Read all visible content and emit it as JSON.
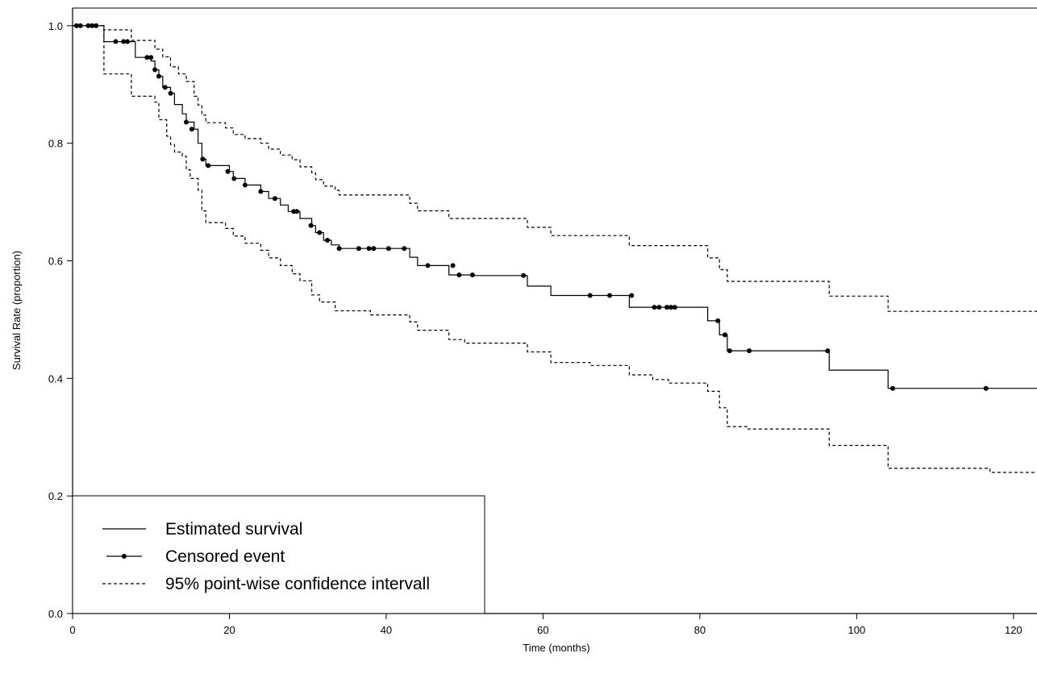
{
  "chart_data": {
    "type": "line",
    "xlabel": "Time (months)",
    "ylabel": "Survival Rate (proportion)",
    "xlim": [
      0,
      123
    ],
    "ylim": [
      0,
      1.03
    ],
    "x_ticks": [
      "0",
      "20",
      "40",
      "60",
      "80",
      "100",
      "120"
    ],
    "y_ticks": [
      "0.0",
      "0.2",
      "0.4",
      "0.6",
      "0.8",
      "1.0"
    ],
    "grid": false,
    "legend_position": "bottom-left",
    "legend": [
      {
        "label": "Estimated survival",
        "style": "solid"
      },
      {
        "label": "Censored event",
        "style": "dot"
      },
      {
        "label": "95% point-wise confidence intervall",
        "style": "dashed"
      }
    ],
    "series": [
      {
        "name": "Estimated survival",
        "style": "solid-step",
        "points": [
          [
            0,
            1.0
          ],
          [
            4,
            1.0
          ],
          [
            4,
            0.973
          ],
          [
            8,
            0.973
          ],
          [
            8,
            0.946
          ],
          [
            10,
            0.946
          ],
          [
            10,
            0.94
          ],
          [
            10.5,
            0.94
          ],
          [
            10.5,
            0.925
          ],
          [
            11,
            0.925
          ],
          [
            11,
            0.914
          ],
          [
            11.5,
            0.914
          ],
          [
            11.5,
            0.895
          ],
          [
            12.5,
            0.895
          ],
          [
            12.5,
            0.885
          ],
          [
            13,
            0.885
          ],
          [
            13,
            0.866
          ],
          [
            14,
            0.866
          ],
          [
            14,
            0.85
          ],
          [
            14.5,
            0.85
          ],
          [
            14.5,
            0.836
          ],
          [
            15.5,
            0.836
          ],
          [
            15.5,
            0.824
          ],
          [
            16,
            0.824
          ],
          [
            16,
            0.8
          ],
          [
            16.5,
            0.8
          ],
          [
            16.5,
            0.773
          ],
          [
            17,
            0.773
          ],
          [
            17,
            0.762
          ],
          [
            20,
            0.762
          ],
          [
            20,
            0.752
          ],
          [
            20.5,
            0.752
          ],
          [
            20.5,
            0.74
          ],
          [
            22,
            0.74
          ],
          [
            22,
            0.729
          ],
          [
            24,
            0.729
          ],
          [
            24,
            0.718
          ],
          [
            25,
            0.718
          ],
          [
            25,
            0.706
          ],
          [
            26.5,
            0.706
          ],
          [
            26.5,
            0.695
          ],
          [
            27.5,
            0.695
          ],
          [
            27.5,
            0.684
          ],
          [
            29,
            0.684
          ],
          [
            29,
            0.672
          ],
          [
            30.5,
            0.672
          ],
          [
            30.5,
            0.66
          ],
          [
            31,
            0.66
          ],
          [
            31,
            0.648
          ],
          [
            32,
            0.648
          ],
          [
            32,
            0.635
          ],
          [
            33,
            0.635
          ],
          [
            33,
            0.627
          ],
          [
            34,
            0.627
          ],
          [
            34,
            0.621
          ],
          [
            43,
            0.621
          ],
          [
            43,
            0.606
          ],
          [
            44,
            0.606
          ],
          [
            44,
            0.592
          ],
          [
            48,
            0.592
          ],
          [
            48,
            0.576
          ],
          [
            51,
            0.576
          ],
          [
            51,
            0.575
          ],
          [
            58,
            0.575
          ],
          [
            58,
            0.557
          ],
          [
            61,
            0.557
          ],
          [
            61,
            0.541
          ],
          [
            71,
            0.541
          ],
          [
            71,
            0.521
          ],
          [
            81,
            0.521
          ],
          [
            81,
            0.498
          ],
          [
            82.5,
            0.498
          ],
          [
            82.5,
            0.474
          ],
          [
            83.5,
            0.474
          ],
          [
            83.5,
            0.447
          ],
          [
            96.5,
            0.447
          ],
          [
            96.5,
            0.414
          ],
          [
            104,
            0.414
          ],
          [
            104,
            0.383
          ],
          [
            123,
            0.383
          ]
        ]
      },
      {
        "name": "Censored event",
        "style": "dot",
        "points": [
          [
            0.5,
            1.0
          ],
          [
            1,
            1.0
          ],
          [
            2,
            1.0
          ],
          [
            2.5,
            1.0
          ],
          [
            3,
            1.0
          ],
          [
            5.5,
            0.973
          ],
          [
            6.5,
            0.973
          ],
          [
            7,
            0.973
          ],
          [
            9.5,
            0.946
          ],
          [
            10,
            0.946
          ],
          [
            10.5,
            0.925
          ],
          [
            11,
            0.914
          ],
          [
            11.8,
            0.895
          ],
          [
            12.5,
            0.885
          ],
          [
            14.5,
            0.836
          ],
          [
            15.2,
            0.824
          ],
          [
            16.6,
            0.773
          ],
          [
            17.3,
            0.762
          ],
          [
            19.8,
            0.752
          ],
          [
            20.6,
            0.74
          ],
          [
            22,
            0.729
          ],
          [
            24,
            0.718
          ],
          [
            25.8,
            0.706
          ],
          [
            28.2,
            0.684
          ],
          [
            28.6,
            0.684
          ],
          [
            30.4,
            0.66
          ],
          [
            31.5,
            0.648
          ],
          [
            32.5,
            0.635
          ],
          [
            34,
            0.621
          ],
          [
            36.5,
            0.621
          ],
          [
            37.8,
            0.621
          ],
          [
            38.4,
            0.621
          ],
          [
            40.3,
            0.621
          ],
          [
            42.3,
            0.621
          ],
          [
            45.3,
            0.592
          ],
          [
            48.5,
            0.592
          ],
          [
            49.3,
            0.576
          ],
          [
            51,
            0.576
          ],
          [
            57.5,
            0.575
          ],
          [
            66,
            0.541
          ],
          [
            68.5,
            0.541
          ],
          [
            71.3,
            0.541
          ],
          [
            74.2,
            0.521
          ],
          [
            74.8,
            0.521
          ],
          [
            75.8,
            0.521
          ],
          [
            76.3,
            0.521
          ],
          [
            76.8,
            0.521
          ],
          [
            82.3,
            0.498
          ],
          [
            83.2,
            0.474
          ],
          [
            83.8,
            0.447
          ],
          [
            86.3,
            0.447
          ],
          [
            96.3,
            0.447
          ],
          [
            104.6,
            0.383
          ],
          [
            116.5,
            0.383
          ]
        ]
      },
      {
        "name": "95% upper limit",
        "style": "dashed-step",
        "points": [
          [
            0,
            1.0
          ],
          [
            4,
            1.0
          ],
          [
            4,
            0.993
          ],
          [
            7.5,
            0.993
          ],
          [
            7.5,
            0.975
          ],
          [
            10.5,
            0.975
          ],
          [
            10.5,
            0.96
          ],
          [
            11.5,
            0.96
          ],
          [
            11.5,
            0.947
          ],
          [
            12.5,
            0.947
          ],
          [
            12.5,
            0.93
          ],
          [
            13.5,
            0.93
          ],
          [
            13.5,
            0.918
          ],
          [
            14.5,
            0.918
          ],
          [
            14.5,
            0.905
          ],
          [
            15.5,
            0.905
          ],
          [
            15.5,
            0.88
          ],
          [
            16,
            0.88
          ],
          [
            16,
            0.865
          ],
          [
            16.5,
            0.865
          ],
          [
            16.5,
            0.848
          ],
          [
            17,
            0.848
          ],
          [
            17,
            0.835
          ],
          [
            19.5,
            0.835
          ],
          [
            19.5,
            0.826
          ],
          [
            20.5,
            0.826
          ],
          [
            20.5,
            0.815
          ],
          [
            22,
            0.815
          ],
          [
            22,
            0.808
          ],
          [
            24,
            0.808
          ],
          [
            24,
            0.8
          ],
          [
            25,
            0.8
          ],
          [
            25,
            0.79
          ],
          [
            26.5,
            0.79
          ],
          [
            26.5,
            0.78
          ],
          [
            28,
            0.78
          ],
          [
            28,
            0.772
          ],
          [
            29,
            0.772
          ],
          [
            29,
            0.76
          ],
          [
            30.5,
            0.76
          ],
          [
            30.5,
            0.75
          ],
          [
            31,
            0.75
          ],
          [
            31,
            0.738
          ],
          [
            32,
            0.738
          ],
          [
            32,
            0.727
          ],
          [
            33.5,
            0.727
          ],
          [
            33.5,
            0.72
          ],
          [
            34,
            0.72
          ],
          [
            34,
            0.712
          ],
          [
            43,
            0.712
          ],
          [
            43,
            0.698
          ],
          [
            44,
            0.698
          ],
          [
            44,
            0.685
          ],
          [
            48,
            0.685
          ],
          [
            48,
            0.672
          ],
          [
            58,
            0.672
          ],
          [
            58,
            0.657
          ],
          [
            61,
            0.657
          ],
          [
            61,
            0.643
          ],
          [
            71,
            0.643
          ],
          [
            71,
            0.626
          ],
          [
            81,
            0.626
          ],
          [
            81,
            0.605
          ],
          [
            82.5,
            0.605
          ],
          [
            82.5,
            0.585
          ],
          [
            83.5,
            0.585
          ],
          [
            83.5,
            0.565
          ],
          [
            96.5,
            0.565
          ],
          [
            96.5,
            0.54
          ],
          [
            104,
            0.54
          ],
          [
            104,
            0.514
          ],
          [
            123,
            0.514
          ]
        ]
      },
      {
        "name": "95% lower limit",
        "style": "dashed-step",
        "points": [
          [
            0,
            1.0
          ],
          [
            4,
            1.0
          ],
          [
            4,
            0.918
          ],
          [
            7.5,
            0.918
          ],
          [
            7.5,
            0.88
          ],
          [
            10.5,
            0.88
          ],
          [
            10.5,
            0.87
          ],
          [
            11,
            0.87
          ],
          [
            11,
            0.84
          ],
          [
            12,
            0.84
          ],
          [
            12,
            0.812
          ],
          [
            12.5,
            0.812
          ],
          [
            12.5,
            0.798
          ],
          [
            13,
            0.798
          ],
          [
            13,
            0.785
          ],
          [
            14,
            0.785
          ],
          [
            14,
            0.778
          ],
          [
            14.5,
            0.778
          ],
          [
            14.5,
            0.755
          ],
          [
            15,
            0.755
          ],
          [
            15,
            0.74
          ],
          [
            16,
            0.74
          ],
          [
            16,
            0.72
          ],
          [
            16.5,
            0.72
          ],
          [
            16.5,
            0.685
          ],
          [
            17,
            0.685
          ],
          [
            17,
            0.665
          ],
          [
            19.5,
            0.665
          ],
          [
            19.5,
            0.655
          ],
          [
            20.5,
            0.655
          ],
          [
            20.5,
            0.642
          ],
          [
            22,
            0.642
          ],
          [
            22,
            0.63
          ],
          [
            24,
            0.63
          ],
          [
            24,
            0.618
          ],
          [
            25,
            0.618
          ],
          [
            25,
            0.605
          ],
          [
            26.5,
            0.605
          ],
          [
            26.5,
            0.592
          ],
          [
            28,
            0.592
          ],
          [
            28,
            0.578
          ],
          [
            29,
            0.578
          ],
          [
            29,
            0.566
          ],
          [
            30.5,
            0.566
          ],
          [
            30.5,
            0.542
          ],
          [
            31.5,
            0.542
          ],
          [
            31.5,
            0.53
          ],
          [
            33.5,
            0.53
          ],
          [
            33.5,
            0.515
          ],
          [
            38,
            0.515
          ],
          [
            38,
            0.508
          ],
          [
            43,
            0.508
          ],
          [
            43,
            0.496
          ],
          [
            44,
            0.496
          ],
          [
            44,
            0.482
          ],
          [
            48,
            0.482
          ],
          [
            48,
            0.466
          ],
          [
            50,
            0.466
          ],
          [
            50,
            0.46
          ],
          [
            58,
            0.46
          ],
          [
            58,
            0.445
          ],
          [
            61,
            0.445
          ],
          [
            61,
            0.427
          ],
          [
            66,
            0.427
          ],
          [
            66,
            0.422
          ],
          [
            71,
            0.422
          ],
          [
            71,
            0.406
          ],
          [
            74,
            0.406
          ],
          [
            74,
            0.398
          ],
          [
            76,
            0.398
          ],
          [
            76,
            0.392
          ],
          [
            81,
            0.392
          ],
          [
            81,
            0.378
          ],
          [
            82.5,
            0.378
          ],
          [
            82.5,
            0.35
          ],
          [
            83.5,
            0.35
          ],
          [
            83.5,
            0.318
          ],
          [
            86,
            0.318
          ],
          [
            86,
            0.314
          ],
          [
            96.5,
            0.314
          ],
          [
            96.5,
            0.286
          ],
          [
            104,
            0.286
          ],
          [
            104,
            0.247
          ],
          [
            117,
            0.247
          ],
          [
            117,
            0.24
          ],
          [
            123,
            0.24
          ]
        ]
      }
    ]
  }
}
